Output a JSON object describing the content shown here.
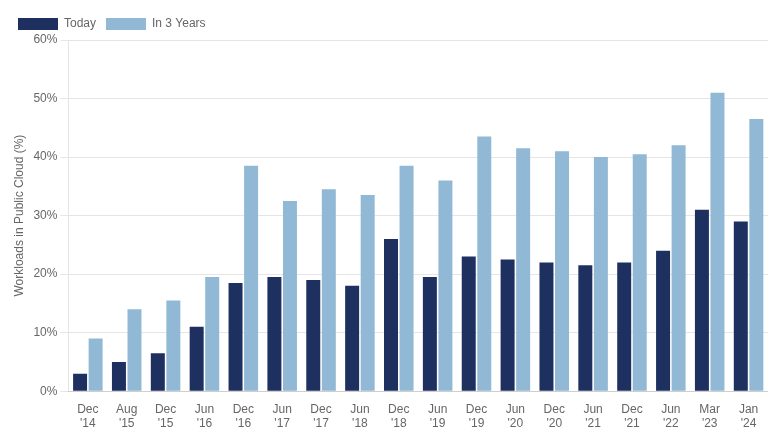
{
  "chart_data": {
    "type": "bar",
    "ylabel": "Workloads in Public Cloud (%)",
    "categories": [
      "Dec\n'14",
      "Aug\n'15",
      "Dec\n'15",
      "Jun\n'16",
      "Dec\n'16",
      "Jun\n'17",
      "Dec\n'17",
      "Jun\n'18",
      "Dec\n'18",
      "Jun\n'19",
      "Dec\n'19",
      "Jun\n'20",
      "Dec\n'20",
      "Jun\n'21",
      "Dec\n'21",
      "Jun\n'22",
      "Mar\n'23",
      "Jan\n'24"
    ],
    "series": [
      {
        "name": "Today",
        "color": "#1e3060",
        "values": [
          3,
          5,
          6.5,
          11,
          18.5,
          19.5,
          19,
          18,
          26,
          19.5,
          23,
          22.5,
          22,
          21.5,
          22,
          24,
          31,
          29
        ]
      },
      {
        "name": "In 3 Years",
        "color": "#91b9d5",
        "values": [
          9,
          14,
          15.5,
          19.5,
          38.5,
          32.5,
          34.5,
          33.5,
          38.5,
          36,
          43.5,
          41.5,
          41,
          40,
          40.5,
          42,
          51,
          46.5
        ]
      }
    ],
    "ylim": [
      0,
      60
    ],
    "yticks": [
      {
        "value": 0,
        "label": "0%"
      },
      {
        "value": 10,
        "label": "10%"
      },
      {
        "value": 20,
        "label": "20%"
      },
      {
        "value": 30,
        "label": "30%"
      },
      {
        "value": 40,
        "label": "40%"
      },
      {
        "value": 50,
        "label": "50%"
      },
      {
        "value": 60,
        "label": "60%"
      }
    ],
    "grid": true,
    "legend": "upper left"
  }
}
